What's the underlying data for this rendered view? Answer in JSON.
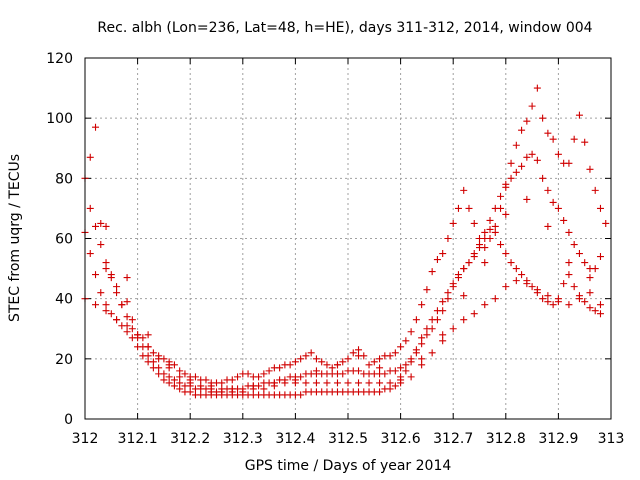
{
  "chart_data": {
    "type": "scatter",
    "title": "Rec. albh (Lon=236, Lat=48, h=HE), days 311-312, 2014, window 004",
    "xlabel": "GPS time / Days of year 2014",
    "ylabel": "STEC from uqrg / TECUs",
    "xlim": [
      312,
      313
    ],
    "ylim": [
      0,
      120
    ],
    "x_ticks": [
      "312",
      "312.1",
      "312.2",
      "312.3",
      "312.4",
      "312.5",
      "312.6",
      "312.7",
      "312.8",
      "312.9",
      "313"
    ],
    "y_ticks": [
      "0",
      "20",
      "40",
      "60",
      "80",
      "100",
      "120"
    ],
    "grid": true,
    "marker": "+",
    "color": "#d00000",
    "series": [
      {
        "x": [
          312.01,
          312.02,
          312.03,
          312.04,
          312.05,
          312.06,
          312.07,
          312.08,
          312.09,
          312.1,
          312.11,
          312.12,
          312.13,
          312.14,
          312.15,
          312.16,
          312.17,
          312.18,
          312.19,
          312.2,
          312.21,
          312.22,
          312.23,
          312.24,
          312.25,
          312.26,
          312.27,
          312.28,
          312.29,
          312.3,
          312.31,
          312.32,
          312.33,
          312.34,
          312.35,
          312.36,
          312.37,
          312.38,
          312.39,
          312.4,
          312.41,
          312.42,
          312.43,
          312.44,
          312.45,
          312.46,
          312.47,
          312.48,
          312.49,
          312.5,
          312.51,
          312.52,
          312.53,
          312.54,
          312.55,
          312.56,
          312.57,
          312.58,
          312.59,
          312.6,
          312.61,
          312.62,
          312.63,
          312.64,
          312.65,
          312.66,
          312.67,
          312.68,
          312.69,
          312.7,
          312.71,
          312.72,
          312.73,
          312.74,
          312.75,
          312.76,
          312.77,
          312.78,
          312.79,
          312.8,
          312.81,
          312.82,
          312.83,
          312.84,
          312.85,
          312.86,
          312.87,
          312.88,
          312.89,
          312.9,
          312.91,
          312.92,
          312.93,
          312.94,
          312.95,
          312.96,
          312.97,
          312.98,
          312.99
        ],
        "y": [
          87,
          97,
          65,
          50,
          48,
          44,
          38,
          39,
          33,
          28,
          27,
          24,
          22,
          21,
          20,
          19,
          18,
          16,
          15,
          14,
          14,
          13,
          13,
          12,
          12,
          12,
          13,
          13,
          14,
          15,
          15,
          14,
          14,
          15,
          16,
          17,
          17,
          18,
          18,
          19,
          20,
          21,
          22,
          20,
          19,
          18,
          17,
          18,
          19,
          20,
          22,
          23,
          21,
          18,
          19,
          20,
          21,
          21,
          22,
          24,
          26,
          29,
          33,
          38,
          43,
          49,
          53,
          55,
          60,
          65,
          70,
          76,
          70,
          65,
          60,
          57,
          60,
          64,
          70,
          78,
          85,
          91,
          96,
          99,
          104,
          110,
          100,
          95,
          93,
          88,
          85,
          85,
          93,
          101,
          92,
          83,
          76,
          70,
          65
        ]
      },
      {
        "x": [
          312.0,
          312.01,
          312.02,
          312.03,
          312.04,
          312.05,
          312.06,
          312.07,
          312.08,
          312.09,
          312.1,
          312.11,
          312.12,
          312.13,
          312.14,
          312.15,
          312.16,
          312.17,
          312.18,
          312.19,
          312.2,
          312.21,
          312.22,
          312.23,
          312.24,
          312.25,
          312.26,
          312.27,
          312.28,
          312.29,
          312.3,
          312.31,
          312.32,
          312.33,
          312.34,
          312.35,
          312.36,
          312.37,
          312.38,
          312.39,
          312.4,
          312.41,
          312.42,
          312.43,
          312.44,
          312.45,
          312.46,
          312.47,
          312.48,
          312.49,
          312.5,
          312.51,
          312.52,
          312.53,
          312.54,
          312.55,
          312.56,
          312.57,
          312.58,
          312.59,
          312.6,
          312.61,
          312.62,
          312.63,
          312.64,
          312.65,
          312.66,
          312.67,
          312.68,
          312.69,
          312.7,
          312.71,
          312.72,
          312.73,
          312.74,
          312.75,
          312.76,
          312.77,
          312.78,
          312.79,
          312.8,
          312.81,
          312.82,
          312.83,
          312.84,
          312.85,
          312.86,
          312.87,
          312.88,
          312.89,
          312.9,
          312.91,
          312.92,
          312.93,
          312.94,
          312.95,
          312.96,
          312.97,
          312.98
        ],
        "y": [
          80,
          70,
          64,
          58,
          52,
          47,
          42,
          38,
          34,
          30,
          27,
          24,
          21,
          19,
          17,
          15,
          14,
          13,
          12,
          11,
          11,
          10,
          10,
          10,
          9,
          9,
          9,
          10,
          10,
          10,
          10,
          11,
          11,
          11,
          12,
          12,
          12,
          13,
          13,
          14,
          14,
          14,
          15,
          15,
          15,
          15,
          15,
          15,
          15,
          15,
          16,
          16,
          16,
          15,
          15,
          15,
          15,
          15,
          16,
          16,
          17,
          18,
          20,
          22,
          25,
          28,
          30,
          33,
          36,
          40,
          44,
          47,
          50,
          52,
          54,
          58,
          62,
          66,
          70,
          74,
          77,
          80,
          82,
          84,
          87,
          88,
          86,
          80,
          76,
          72,
          70,
          66,
          62,
          58,
          55,
          52,
          50,
          50,
          54
        ]
      },
      {
        "x": [
          312.0,
          312.01,
          312.02,
          312.03,
          312.04,
          312.05,
          312.06,
          312.07,
          312.08,
          312.09,
          312.1,
          312.11,
          312.12,
          312.13,
          312.14,
          312.15,
          312.16,
          312.17,
          312.18,
          312.19,
          312.2,
          312.21,
          312.22,
          312.23,
          312.24,
          312.25,
          312.26,
          312.27,
          312.28,
          312.29,
          312.3,
          312.31,
          312.32,
          312.33,
          312.34,
          312.35,
          312.36,
          312.37,
          312.38,
          312.39,
          312.4,
          312.41,
          312.42,
          312.43,
          312.44,
          312.45,
          312.46,
          312.47,
          312.48,
          312.49,
          312.5,
          312.51,
          312.52,
          312.53,
          312.54,
          312.55,
          312.56,
          312.57,
          312.58,
          312.59,
          312.6,
          312.61,
          312.62,
          312.63,
          312.64,
          312.65,
          312.66,
          312.67,
          312.68,
          312.69,
          312.7,
          312.71,
          312.72,
          312.73,
          312.74,
          312.75,
          312.76,
          312.77,
          312.78,
          312.79,
          312.8,
          312.81,
          312.82,
          312.83,
          312.84,
          312.85,
          312.86,
          312.87,
          312.88,
          312.89,
          312.9,
          312.91,
          312.92,
          312.93,
          312.94,
          312.95,
          312.96,
          312.97,
          312.98
        ],
        "y": [
          62,
          55,
          48,
          42,
          38,
          35,
          33,
          31,
          29,
          27,
          24,
          21,
          19,
          17,
          15,
          13,
          12,
          11,
          10,
          9,
          9,
          8,
          8,
          8,
          8,
          8,
          8,
          8,
          8,
          8,
          8,
          8,
          8,
          8,
          8,
          8,
          8,
          8,
          8,
          8,
          8,
          8,
          9,
          9,
          9,
          9,
          9,
          9,
          9,
          9,
          9,
          9,
          9,
          9,
          9,
          9,
          9,
          10,
          10,
          11,
          13,
          16,
          19,
          23,
          27,
          30,
          33,
          36,
          39,
          42,
          45,
          48,
          50,
          52,
          55,
          57,
          60,
          63,
          62,
          58,
          55,
          52,
          50,
          48,
          46,
          44,
          42,
          40,
          39,
          38,
          40,
          45,
          48,
          44,
          41,
          39,
          37,
          36,
          35
        ]
      },
      {
        "x": [
          312.0,
          312.02,
          312.04,
          312.06,
          312.08,
          312.1,
          312.12,
          312.14,
          312.16,
          312.18,
          312.2,
          312.22,
          312.24,
          312.26,
          312.28,
          312.3,
          312.32,
          312.34,
          312.36,
          312.38,
          312.4,
          312.42,
          312.44,
          312.46,
          312.48,
          312.5,
          312.52,
          312.54,
          312.56,
          312.58,
          312.6,
          312.62,
          312.64,
          312.66,
          312.68,
          312.7,
          312.72,
          312.74,
          312.76,
          312.78,
          312.8,
          312.82,
          312.84,
          312.86,
          312.88,
          312.9,
          312.92,
          312.94,
          312.96,
          312.98
        ],
        "y": [
          40,
          38,
          36,
          33,
          31,
          28,
          24,
          20,
          17,
          14,
          12,
          11,
          10,
          10,
          9,
          9,
          10,
          10,
          11,
          12,
          12,
          12,
          12,
          12,
          12,
          12,
          12,
          12,
          12,
          12,
          12,
          14,
          18,
          22,
          26,
          30,
          33,
          35,
          38,
          40,
          44,
          46,
          45,
          43,
          41,
          39,
          38,
          40,
          42,
          38
        ]
      },
      {
        "x": [
          312.04,
          312.08,
          312.12,
          312.16,
          312.2,
          312.24,
          312.28,
          312.32,
          312.36,
          312.4,
          312.44,
          312.48,
          312.52,
          312.56,
          312.6,
          312.64,
          312.68,
          312.72,
          312.76,
          312.8,
          312.84,
          312.88,
          312.92,
          312.96
        ],
        "y": [
          64,
          47,
          28,
          18,
          13,
          11,
          10,
          11,
          12,
          13,
          16,
          18,
          21,
          17,
          14,
          20,
          28,
          41,
          52,
          68,
          73,
          64,
          52,
          47
        ]
      }
    ]
  }
}
